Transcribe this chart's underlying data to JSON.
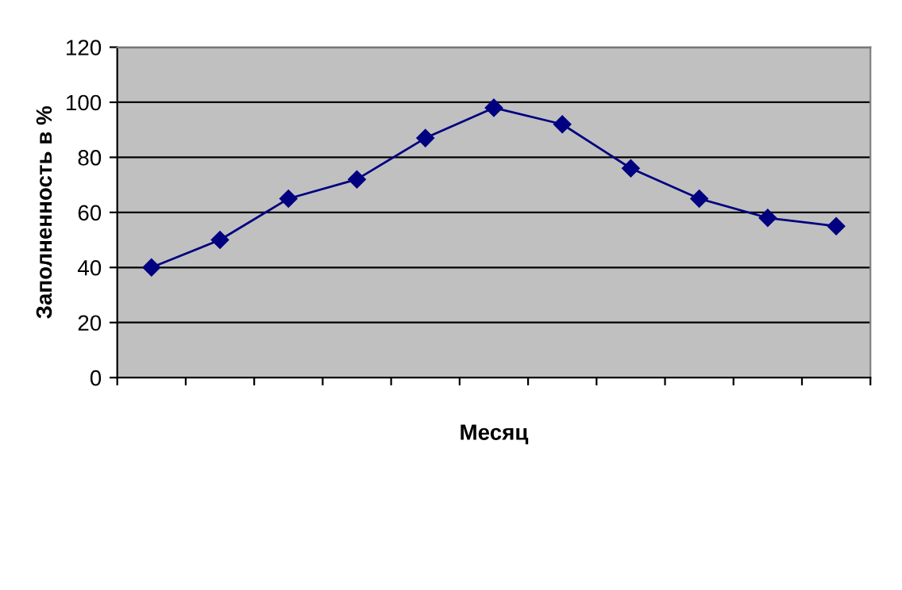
{
  "chart_data": {
    "type": "line",
    "xlabel": "Месяц",
    "ylabel": "Заполненность в %",
    "categories": [
      null,
      null,
      null,
      null,
      null,
      null,
      null,
      null,
      null,
      null,
      null
    ],
    "series": [
      {
        "color": "#000080",
        "values": [
          40,
          50,
          65,
          72,
          87,
          98,
          92,
          76,
          65,
          58,
          55
        ]
      }
    ],
    "ylim": [
      0,
      120
    ],
    "yticks": [
      0,
      20,
      40,
      60,
      80,
      100,
      120
    ],
    "grid": "y",
    "marker": "diamond",
    "line_style": "solid"
  }
}
